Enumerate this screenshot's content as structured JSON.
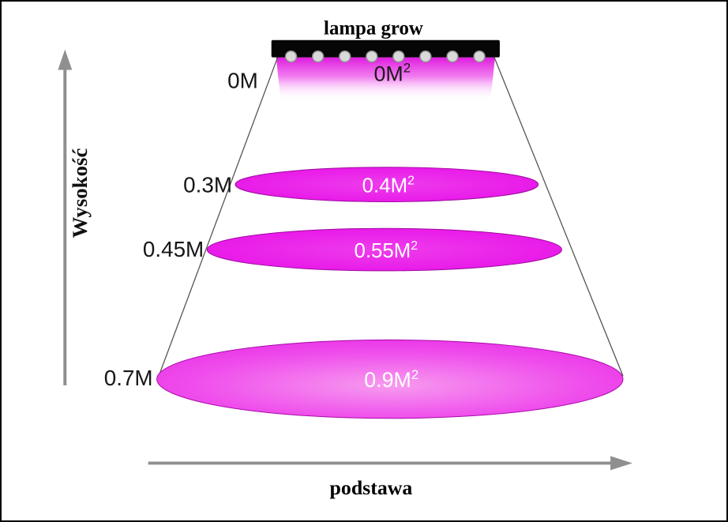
{
  "title": "lampa grow",
  "axes": {
    "y_label": "Wysokość",
    "x_label": "podstawa"
  },
  "lamp": {
    "led_count": 8
  },
  "levels": [
    {
      "height": "0M",
      "area": "0M",
      "exp": "2"
    },
    {
      "height": "0.3M",
      "area": "0.4M",
      "exp": "2"
    },
    {
      "height": "0.45M",
      "area": "0.55M",
      "exp": "2"
    },
    {
      "height": "0.7M",
      "area": "0.9M",
      "exp": "2"
    }
  ],
  "colors": {
    "magenta": "#e91ce9",
    "magenta_dark": "#b60cb6",
    "light_pink": "#f79bef",
    "axis_gray": "#8f8f8f",
    "lamp_black": "#060606",
    "text_black": "#161616",
    "area_text_white": "#ffffff"
  }
}
